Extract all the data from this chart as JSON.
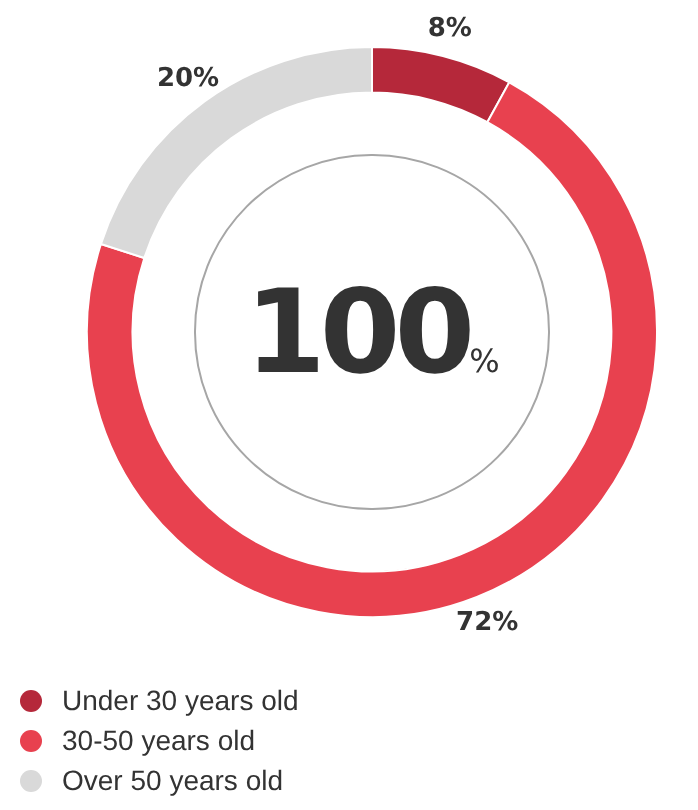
{
  "chart_data": {
    "type": "donut",
    "categories": [
      "Under 30 years old",
      "30-50 years old",
      "Over 50 years old"
    ],
    "values": [
      8,
      72,
      20
    ],
    "colors": [
      "#b5283a",
      "#e8414f",
      "#d9d9d9"
    ],
    "value_labels": [
      "8%",
      "72%",
      "20%"
    ],
    "legend": "bottom left",
    "annotations": [
      "100%"
    ]
  }
}
